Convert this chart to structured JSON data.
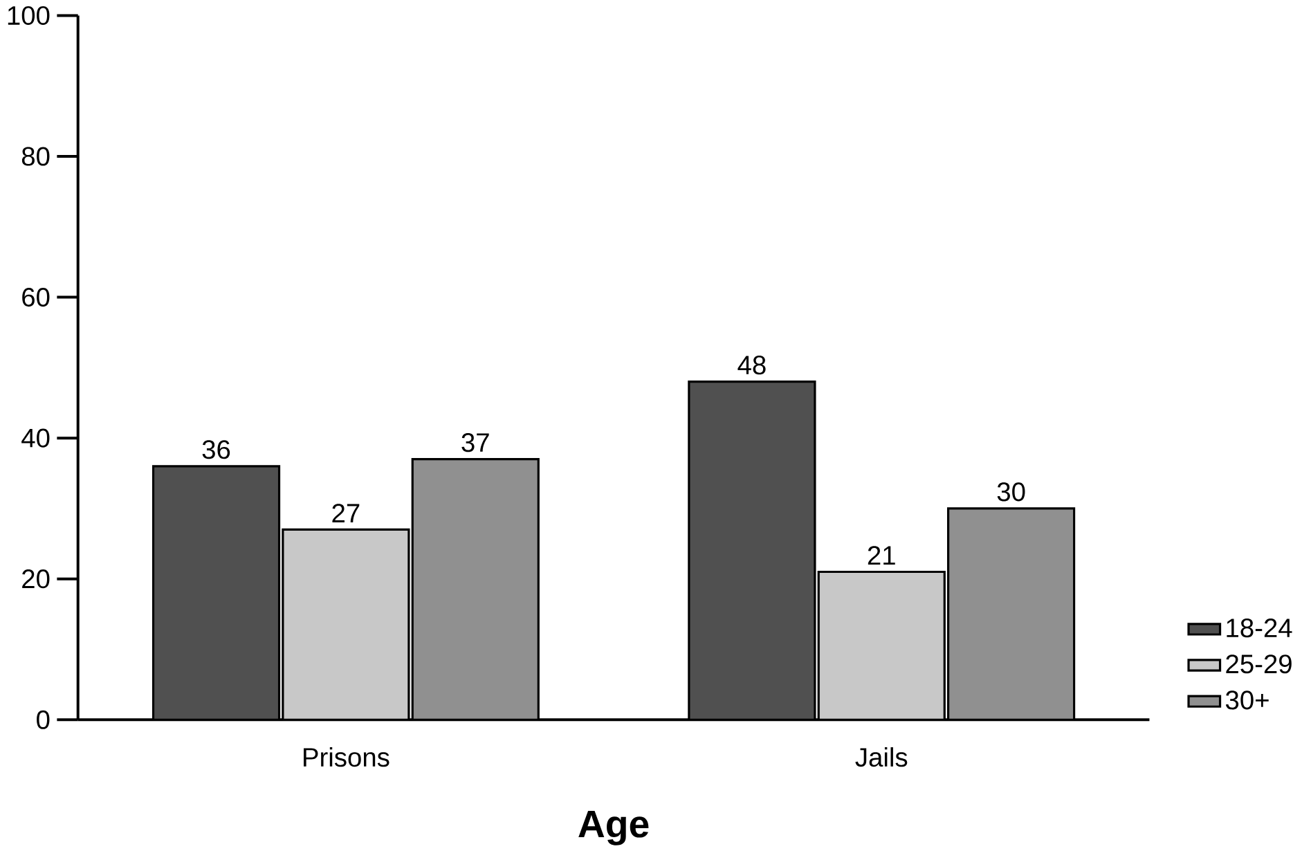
{
  "chart_data": {
    "type": "bar",
    "xlabel": "Age",
    "categories": [
      "Prisons",
      "Jails"
    ],
    "series": [
      {
        "name": "18-24",
        "color": "#505050",
        "values": [
          36,
          48
        ]
      },
      {
        "name": "25-29",
        "color": "#c8c8c8",
        "values": [
          27,
          21
        ]
      },
      {
        "name": "30+",
        "color": "#909090",
        "values": [
          37,
          30
        ]
      }
    ],
    "ylim": [
      0,
      100
    ],
    "yticks": [
      0,
      20,
      40,
      60,
      80,
      100
    ],
    "data_labels": true,
    "legend": "bottom right",
    "grid": false
  }
}
